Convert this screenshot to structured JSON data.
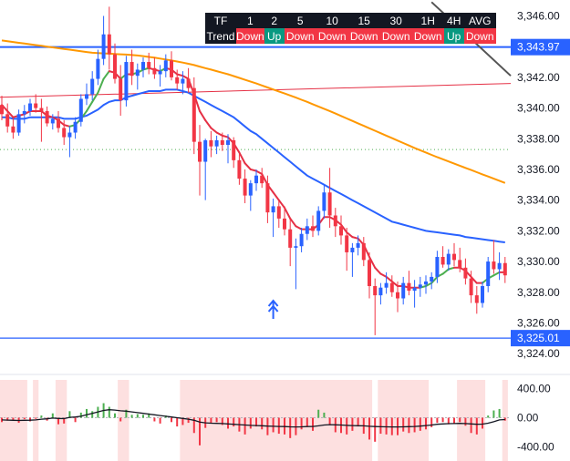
{
  "trend_table": {
    "header_label": "TF",
    "row_label": "Trend",
    "timeframes": [
      "1",
      "2",
      "5",
      "10",
      "15",
      "30",
      "1H",
      "4H",
      "AVG"
    ],
    "trends": [
      "Down",
      "Up",
      "Down",
      "Down",
      "Down",
      "Down",
      "Down",
      "Up",
      "Down"
    ]
  },
  "colors": {
    "up": "#2962ff",
    "down": "#f23645",
    "ma_short": "#e53045",
    "ma_green": "#4caf50",
    "ma_blue": "#2962ff",
    "ma_orange": "#ff9800",
    "ma_dark": "#555555",
    "hline": "#2962ff",
    "trendline": "#e53045",
    "dotted": "#4caf50",
    "osc_shade": "#fde0e0"
  },
  "chart_data": {
    "type": "candlestick",
    "price_axis": {
      "ylim": [
        3323.0,
        3346.8
      ],
      "ticks": [
        "3,346.00",
        "3,344.00",
        "3,342.00",
        "3,340.00",
        "3,338.00",
        "3,336.00",
        "3,334.00",
        "3,332.00",
        "3,330.00",
        "3,328.00",
        "3,326.00",
        "3,324.00"
      ],
      "tick_values": [
        3346,
        3344,
        3342,
        3340,
        3338,
        3336,
        3334,
        3332,
        3330,
        3328,
        3326,
        3324
      ],
      "price_labels": [
        {
          "value": 3343.97,
          "text": "3,343.97",
          "color": "#2962ff"
        },
        {
          "value": 3325.01,
          "text": "3,325.01",
          "color": "#2962ff"
        }
      ],
      "dotted_level": 3337.3,
      "trendline": [
        3340.7,
        3341.6
      ]
    },
    "candles": [
      [
        3340.2,
        3340.8,
        3339.2,
        3339.6
      ],
      [
        3339.6,
        3340.3,
        3338.4,
        3338.8
      ],
      [
        3338.8,
        3339.4,
        3338.0,
        3338.4
      ],
      [
        3338.4,
        3339.9,
        3338.2,
        3339.6
      ],
      [
        3339.6,
        3340.2,
        3339.0,
        3339.8
      ],
      [
        3339.8,
        3340.6,
        3339.5,
        3340.3
      ],
      [
        3340.3,
        3340.9,
        3339.7,
        3340.0
      ],
      [
        3340.0,
        3340.6,
        3337.8,
        3339.8
      ],
      [
        3339.8,
        3340.1,
        3338.8,
        3339.0
      ],
      [
        3339.0,
        3339.6,
        3338.6,
        3339.3
      ],
      [
        3339.3,
        3339.8,
        3338.4,
        3338.7
      ],
      [
        3338.7,
        3339.2,
        3337.6,
        3338.1
      ],
      [
        3338.1,
        3338.8,
        3336.8,
        3338.4
      ],
      [
        3338.4,
        3339.4,
        3338.0,
        3339.1
      ],
      [
        3339.1,
        3340.9,
        3338.8,
        3340.6
      ],
      [
        3340.6,
        3341.6,
        3340.2,
        3340.9
      ],
      [
        3340.9,
        3342.4,
        3340.5,
        3341.9
      ],
      [
        3341.9,
        3343.8,
        3341.5,
        3343.2
      ],
      [
        3343.2,
        3346.0,
        3342.8,
        3344.8
      ],
      [
        3344.8,
        3346.6,
        3342.5,
        3343.5
      ],
      [
        3343.5,
        3344.2,
        3341.6,
        3341.9
      ],
      [
        3341.9,
        3342.8,
        3339.5,
        3340.5
      ],
      [
        3340.5,
        3343.4,
        3340.1,
        3343.0
      ],
      [
        3343.0,
        3343.8,
        3341.5,
        3342.1
      ],
      [
        3342.1,
        3342.9,
        3341.2,
        3342.5
      ],
      [
        3342.5,
        3343.3,
        3342.0,
        3343.0
      ],
      [
        3343.0,
        3343.6,
        3342.2,
        3342.6
      ],
      [
        3342.6,
        3343.3,
        3341.9,
        3342.2
      ],
      [
        3342.2,
        3342.8,
        3341.4,
        3342.4
      ],
      [
        3342.4,
        3343.5,
        3342.0,
        3343.1
      ],
      [
        3343.1,
        3343.7,
        3341.8,
        3342.0
      ],
      [
        3342.0,
        3342.5,
        3341.2,
        3341.6
      ],
      [
        3341.6,
        3342.4,
        3340.9,
        3341.9
      ],
      [
        3341.9,
        3342.6,
        3341.0,
        3341.3
      ],
      [
        3341.3,
        3342.0,
        3337.0,
        3337.8
      ],
      [
        3337.8,
        3338.9,
        3334.3,
        3336.5
      ],
      [
        3336.5,
        3338.0,
        3334.0,
        3337.9
      ],
      [
        3337.9,
        3338.5,
        3336.8,
        3337.5
      ],
      [
        3337.5,
        3338.2,
        3337.0,
        3337.9
      ],
      [
        3337.9,
        3338.4,
        3337.2,
        3337.6
      ],
      [
        3337.6,
        3338.3,
        3336.4,
        3337.9
      ],
      [
        3337.9,
        3338.1,
        3336.1,
        3336.6
      ],
      [
        3336.6,
        3337.0,
        3335.0,
        3335.4
      ],
      [
        3335.4,
        3336.0,
        3333.8,
        3334.3
      ],
      [
        3334.3,
        3335.3,
        3333.3,
        3335.1
      ],
      [
        3335.1,
        3336.0,
        3334.6,
        3335.6
      ],
      [
        3335.6,
        3336.1,
        3334.8,
        3335.1
      ],
      [
        3335.1,
        3335.6,
        3332.5,
        3333.2
      ],
      [
        3333.2,
        3334.1,
        3331.6,
        3333.6
      ],
      [
        3333.6,
        3334.0,
        3332.2,
        3332.8
      ],
      [
        3332.8,
        3333.6,
        3331.7,
        3332.1
      ],
      [
        3332.1,
        3332.8,
        3329.7,
        3330.9
      ],
      [
        3330.9,
        3331.5,
        3328.2,
        3331.0
      ],
      [
        3331.0,
        3332.2,
        3330.6,
        3331.8
      ],
      [
        3331.8,
        3332.8,
        3331.4,
        3332.3
      ],
      [
        3332.3,
        3333.0,
        3331.6,
        3332.0
      ],
      [
        3332.0,
        3333.6,
        3331.7,
        3333.3
      ],
      [
        3333.3,
        3335.0,
        3332.8,
        3334.5
      ],
      [
        3334.5,
        3336.1,
        3332.2,
        3333.0
      ],
      [
        3333.0,
        3333.5,
        3331.6,
        3332.3
      ],
      [
        3332.3,
        3333.0,
        3331.1,
        3331.7
      ],
      [
        3331.7,
        3332.2,
        3329.4,
        3330.6
      ],
      [
        3330.6,
        3331.2,
        3329.0,
        3330.9
      ],
      [
        3330.9,
        3331.7,
        3330.4,
        3331.2
      ],
      [
        3331.2,
        3331.6,
        3329.7,
        3330.1
      ],
      [
        3330.1,
        3330.6,
        3327.6,
        3328.4
      ],
      [
        3328.4,
        3328.9,
        3325.2,
        3327.8
      ],
      [
        3327.8,
        3328.6,
        3327.2,
        3328.3
      ],
      [
        3328.3,
        3329.3,
        3327.9,
        3328.6
      ],
      [
        3328.6,
        3329.1,
        3327.7,
        3328.0
      ],
      [
        3328.0,
        3328.7,
        3326.7,
        3327.6
      ],
      [
        3327.6,
        3329.0,
        3327.2,
        3328.6
      ],
      [
        3328.6,
        3329.4,
        3327.8,
        3328.1
      ],
      [
        3328.1,
        3328.8,
        3327.0,
        3328.3
      ],
      [
        3328.3,
        3329.0,
        3327.7,
        3328.5
      ],
      [
        3328.5,
        3329.1,
        3327.9,
        3328.7
      ],
      [
        3328.7,
        3329.3,
        3328.2,
        3329.0
      ],
      [
        3329.0,
        3330.7,
        3328.6,
        3330.3
      ],
      [
        3330.3,
        3331.0,
        3329.6,
        3329.8
      ],
      [
        3329.8,
        3330.8,
        3329.4,
        3330.5
      ],
      [
        3330.5,
        3331.2,
        3329.7,
        3330.1
      ],
      [
        3330.1,
        3330.9,
        3329.3,
        3329.6
      ],
      [
        3329.6,
        3330.2,
        3328.5,
        3328.9
      ],
      [
        3328.9,
        3329.4,
        3327.3,
        3327.8
      ],
      [
        3327.8,
        3328.4,
        3326.6,
        3327.3
      ],
      [
        3327.3,
        3328.7,
        3327.0,
        3328.4
      ],
      [
        3328.4,
        3330.3,
        3328.0,
        3330.0
      ],
      [
        3330.0,
        3331.4,
        3329.2,
        3329.5
      ],
      [
        3329.5,
        3330.6,
        3328.8,
        3329.9
      ],
      [
        3329.9,
        3330.3,
        3328.6,
        3329.1
      ]
    ],
    "ma_short": [
      3340.2,
      3339.8,
      3339.4,
      3339.5,
      3339.6,
      3339.8,
      3339.8,
      3339.8,
      3339.5,
      3339.4,
      3339.2,
      3338.9,
      3338.8,
      3338.9,
      3339.3,
      3339.8,
      3340.4,
      3341.0,
      3341.9,
      3342.4,
      3342.3,
      3341.9,
      3342.2,
      3342.2,
      3342.3,
      3342.5,
      3342.6,
      3342.5,
      3342.4,
      3342.6,
      3342.5,
      3342.2,
      3342.1,
      3341.9,
      3340.9,
      3339.8,
      3339.2,
      3338.7,
      3338.4,
      3338.2,
      3338.1,
      3337.7,
      3337.1,
      3336.4,
      3336.0,
      3335.9,
      3335.7,
      3335.0,
      3334.5,
      3334.0,
      3333.5,
      3332.8,
      3332.3,
      3332.1,
      3332.1,
      3332.1,
      3332.4,
      3332.9,
      3332.9,
      3332.7,
      3332.4,
      3331.9,
      3331.6,
      3331.5,
      3331.1,
      3330.3,
      3329.6,
      3329.2,
      3329.0,
      3328.7,
      3328.4,
      3328.4,
      3328.3,
      3328.3,
      3328.3,
      3328.4,
      3328.6,
      3329.0,
      3329.2,
      3329.5,
      3329.6,
      3329.6,
      3329.4,
      3329.0,
      3328.6,
      3328.6,
      3328.9,
      3329.1,
      3329.3,
      3329.3
    ],
    "ma_blue": [
      3339.4,
      3339.4,
      3339.3,
      3339.3,
      3339.3,
      3339.4,
      3339.4,
      3339.4,
      3339.4,
      3339.4,
      3339.4,
      3339.3,
      3339.3,
      3339.3,
      3339.4,
      3339.5,
      3339.7,
      3339.9,
      3340.2,
      3340.4,
      3340.5,
      3340.5,
      3340.7,
      3340.8,
      3340.9,
      3341.0,
      3341.1,
      3341.1,
      3341.1,
      3341.2,
      3341.2,
      3341.2,
      3341.1,
      3341.0,
      3340.8,
      3340.6,
      3340.4,
      3340.2,
      3340.0,
      3339.8,
      3339.6,
      3339.4,
      3339.1,
      3338.8,
      3338.5,
      3338.3,
      3338.0,
      3337.7,
      3337.4,
      3337.1,
      3336.8,
      3336.5,
      3336.2,
      3335.9,
      3335.6,
      3335.4,
      3335.2,
      3335.0,
      3334.8,
      3334.6,
      3334.4,
      3334.2,
      3334.0,
      3333.8,
      3333.6,
      3333.4,
      3333.2,
      3333.0,
      3332.8,
      3332.6,
      3332.5,
      3332.4,
      3332.3,
      3332.2,
      3332.1,
      3332.0,
      3331.95,
      3331.9,
      3331.85,
      3331.8,
      3331.75,
      3331.7,
      3331.6,
      3331.55,
      3331.5,
      3331.45,
      3331.4,
      3331.35,
      3331.3,
      3331.25
    ],
    "ma_orange": [
      3344.4,
      3344.35,
      3344.3,
      3344.25,
      3344.2,
      3344.15,
      3344.1,
      3344.05,
      3344.0,
      3343.95,
      3343.9,
      3343.85,
      3343.8,
      3343.75,
      3343.7,
      3343.65,
      3343.6,
      3343.58,
      3343.56,
      3343.54,
      3343.52,
      3343.5,
      3343.48,
      3343.45,
      3343.42,
      3343.38,
      3343.33,
      3343.28,
      3343.22,
      3343.16,
      3343.1,
      3343.03,
      3342.96,
      3342.88,
      3342.8,
      3342.7,
      3342.6,
      3342.5,
      3342.4,
      3342.3,
      3342.2,
      3342.08,
      3341.96,
      3341.84,
      3341.72,
      3341.6,
      3341.47,
      3341.34,
      3341.21,
      3341.08,
      3340.95,
      3340.82,
      3340.68,
      3340.54,
      3340.4,
      3340.25,
      3340.1,
      3339.95,
      3339.8,
      3339.64,
      3339.48,
      3339.32,
      3339.16,
      3339.0,
      3338.84,
      3338.68,
      3338.52,
      3338.36,
      3338.2,
      3338.04,
      3337.88,
      3337.72,
      3337.56,
      3337.4,
      3337.25,
      3337.1,
      3336.95,
      3336.8,
      3336.66,
      3336.52,
      3336.38,
      3336.24,
      3336.1,
      3335.96,
      3335.82,
      3335.68,
      3335.54,
      3335.4,
      3335.26,
      3335.12
    ],
    "ma_dark": [
      [
        76,
        3346.9
      ],
      [
        90,
        3342.1
      ]
    ],
    "oscillator": {
      "ylim": [
        -520,
        520
      ],
      "ticks": [
        "400.00",
        "0.00",
        "-400.00"
      ],
      "tick_values": [
        400,
        0,
        -400
      ],
      "histogram": [
        -60,
        -40,
        -30,
        -70,
        -20,
        -50,
        -15,
        30,
        -40,
        60,
        -90,
        -80,
        90,
        -60,
        70,
        120,
        90,
        150,
        200,
        150,
        60,
        -50,
        110,
        40,
        50,
        40,
        60,
        -50,
        -80,
        30,
        -60,
        -120,
        -100,
        -70,
        -210,
        -380,
        -140,
        -70,
        -60,
        -100,
        -150,
        -120,
        -190,
        -230,
        -150,
        -120,
        -160,
        -240,
        -200,
        -220,
        -230,
        -280,
        -240,
        -160,
        -120,
        -180,
        110,
        70,
        -90,
        -200,
        -210,
        -230,
        -180,
        -120,
        -220,
        -300,
        -330,
        -220,
        -230,
        -240,
        -240,
        -190,
        -210,
        -200,
        -180,
        -160,
        -130,
        -70,
        -60,
        -90,
        -80,
        -60,
        -110,
        -210,
        -230,
        -150,
        30,
        100,
        120,
        -40
      ],
      "signal": [
        -30,
        -32,
        -35,
        -38,
        -35,
        -34,
        -30,
        -20,
        -15,
        -5,
        -10,
        -12,
        5,
        10,
        20,
        40,
        60,
        80,
        100,
        110,
        105,
        95,
        90,
        80,
        70,
        60,
        50,
        40,
        30,
        20,
        10,
        0,
        -10,
        -20,
        -35,
        -60,
        -70,
        -75,
        -78,
        -80,
        -85,
        -90,
        -95,
        -100,
        -105,
        -108,
        -110,
        -115,
        -118,
        -120,
        -122,
        -125,
        -126,
        -125,
        -122,
        -120,
        -112,
        -100,
        -95,
        -98,
        -100,
        -105,
        -108,
        -110,
        -112,
        -118,
        -122,
        -124,
        -125,
        -126,
        -126,
        -125,
        -123,
        -120,
        -115,
        -108,
        -100,
        -90,
        -85,
        -82,
        -80,
        -78,
        -80,
        -85,
        -90,
        -88,
        -75,
        -55,
        -30,
        -25
      ],
      "shaded_ranges": [
        [
          0,
          5
        ],
        [
          6,
          7
        ],
        [
          10,
          12
        ],
        [
          21,
          23
        ],
        [
          32,
          66
        ],
        [
          67,
          76
        ],
        [
          81,
          86
        ],
        [
          89,
          90
        ]
      ]
    }
  }
}
